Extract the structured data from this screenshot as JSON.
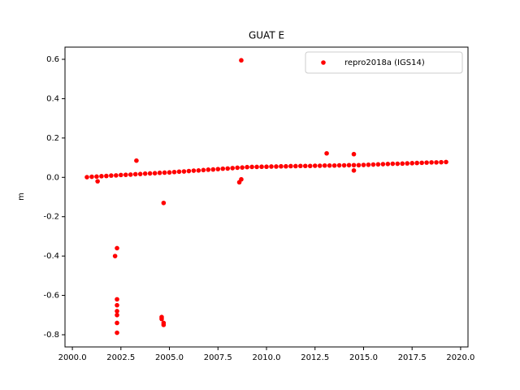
{
  "chart_data": {
    "type": "scatter",
    "title": "GUAT E",
    "y_label": "m",
    "xlim": [
      1999.62,
      2020.38
    ],
    "ylim": [
      -0.862,
      0.662
    ],
    "xticks": [
      {
        "value": 2000,
        "label": "2000.0"
      },
      {
        "value": 2002.5,
        "label": "2002.5"
      },
      {
        "value": 2005,
        "label": "2005.0"
      },
      {
        "value": 2007.5,
        "label": "2007.5"
      },
      {
        "value": 2010,
        "label": "2010.0"
      },
      {
        "value": 2012.5,
        "label": "2012.5"
      },
      {
        "value": 2015,
        "label": "2015.0"
      },
      {
        "value": 2017.5,
        "label": "2017.5"
      },
      {
        "value": 2020,
        "label": "2020.0"
      }
    ],
    "yticks": [
      -0.8,
      -0.6,
      -0.4,
      -0.2,
      {
        "value": 0,
        "label": "0.0"
      },
      0.2,
      0.4,
      0.6
    ],
    "legend": "upper right",
    "series": [
      {
        "name": "repro2018a (IGS14)",
        "color": "#ff0000",
        "x": [
          2000.75,
          2001,
          2001.25,
          2001.5,
          2001.75,
          2002,
          2002.25,
          2002.5,
          2002.75,
          2003,
          2003.25,
          2003.5,
          2003.75,
          2004,
          2004.25,
          2004.5,
          2004.75,
          2005,
          2005.25,
          2005.5,
          2005.75,
          2006,
          2006.25,
          2006.5,
          2006.75,
          2007,
          2007.25,
          2007.5,
          2007.75,
          2008,
          2008.25,
          2008.5,
          2008.75,
          2009,
          2009.25,
          2009.5,
          2009.75,
          2010,
          2010.25,
          2010.5,
          2010.75,
          2011,
          2011.25,
          2011.5,
          2011.75,
          2012,
          2012.25,
          2012.5,
          2012.75,
          2013,
          2013.25,
          2013.5,
          2013.75,
          2014,
          2014.25,
          2014.5,
          2014.75,
          2015,
          2015.25,
          2015.5,
          2015.75,
          2016,
          2016.25,
          2016.5,
          2016.75,
          2017,
          2017.25,
          2017.5,
          2017.75,
          2018,
          2018.25,
          2018.5,
          2018.75,
          2019,
          2019.25,
          2001.3,
          2002.3,
          2002.2,
          2002.3,
          2002.3,
          2002.3,
          2002.3,
          2002.3,
          2002.3,
          2003.3,
          2004.7,
          2004.6,
          2004.6,
          2004.7,
          2004.7,
          2008.7,
          2008.6,
          2008.7,
          2013.1,
          2014.5,
          2014.5
        ],
        "values": [
          0.001,
          0.003,
          0.004,
          0.006,
          0.007,
          0.009,
          0.01,
          0.012,
          0.013,
          0.014,
          0.016,
          0.017,
          0.019,
          0.02,
          0.021,
          0.023,
          0.024,
          0.025,
          0.027,
          0.029,
          0.03,
          0.032,
          0.034,
          0.035,
          0.037,
          0.039,
          0.04,
          0.042,
          0.044,
          0.045,
          0.047,
          0.049,
          0.05,
          0.052,
          0.053,
          0.053,
          0.054,
          0.054,
          0.055,
          0.055,
          0.056,
          0.056,
          0.057,
          0.057,
          0.058,
          0.058,
          0.058,
          0.059,
          0.059,
          0.06,
          0.06,
          0.06,
          0.061,
          0.061,
          0.062,
          0.062,
          0.062,
          0.063,
          0.064,
          0.065,
          0.066,
          0.067,
          0.068,
          0.069,
          0.069,
          0.07,
          0.071,
          0.072,
          0.073,
          0.074,
          0.075,
          0.076,
          0.076,
          0.077,
          0.078,
          -0.02,
          -0.36,
          -0.4,
          -0.62,
          -0.65,
          -0.68,
          -0.7,
          -0.74,
          -0.79,
          0.085,
          -0.13,
          -0.71,
          -0.72,
          -0.74,
          -0.75,
          0.595,
          -0.025,
          -0.01,
          0.122,
          0.118,
          0.035
        ]
      }
    ]
  }
}
